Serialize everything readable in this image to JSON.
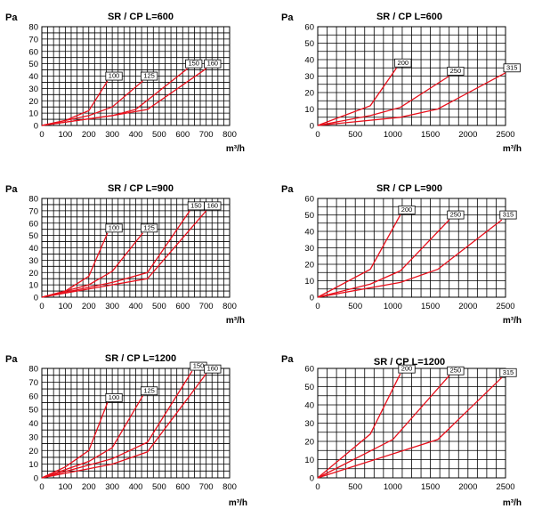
{
  "chart_data": [
    {
      "type": "line",
      "title": "SR / CP  L=600",
      "ylabel": "Pa",
      "xlabel": "m³/h",
      "xlim": [
        0,
        800
      ],
      "ylim": [
        0,
        80
      ],
      "grid": true,
      "x_ticks": [
        0,
        100,
        200,
        300,
        400,
        500,
        600,
        700,
        800
      ],
      "y_ticks": [
        0,
        10,
        20,
        30,
        40,
        50,
        60,
        70,
        80
      ],
      "series": [
        {
          "name": "100",
          "x": [
            0,
            100,
            200,
            280
          ],
          "y": [
            0,
            4,
            12,
            36
          ]
        },
        {
          "name": "125",
          "x": [
            0,
            200,
            300,
            430
          ],
          "y": [
            0,
            8,
            15,
            36
          ]
        },
        {
          "name": "150",
          "x": [
            0,
            300,
            400,
            620
          ],
          "y": [
            0,
            8,
            13,
            46
          ]
        },
        {
          "name": "160",
          "x": [
            0,
            300,
            450,
            700
          ],
          "y": [
            0,
            8,
            13,
            46
          ]
        }
      ]
    },
    {
      "type": "line",
      "title": "SR / CP  L=600",
      "ylabel": "Pa",
      "xlabel": "m³/h",
      "xlim": [
        0,
        2500
      ],
      "ylim": [
        0,
        60
      ],
      "grid": true,
      "x_ticks": [
        0,
        500,
        1000,
        1500,
        2000,
        2500
      ],
      "y_ticks": [
        0,
        10,
        20,
        30,
        40,
        50,
        60
      ],
      "series": [
        {
          "name": "200",
          "x": [
            0,
            700,
            1050
          ],
          "y": [
            0,
            12,
            35
          ]
        },
        {
          "name": "250",
          "x": [
            0,
            700,
            1100,
            1750
          ],
          "y": [
            0,
            6,
            11,
            30
          ]
        },
        {
          "name": "315",
          "x": [
            0,
            1100,
            1600,
            2500
          ],
          "y": [
            0,
            5,
            10,
            32
          ]
        }
      ]
    },
    {
      "type": "line",
      "title": "SR / CP  L=900",
      "ylabel": "Pa",
      "xlabel": "m³/h",
      "xlim": [
        0,
        800
      ],
      "ylim": [
        0,
        80
      ],
      "grid": true,
      "x_ticks": [
        0,
        100,
        200,
        300,
        400,
        500,
        600,
        700,
        800
      ],
      "y_ticks": [
        0,
        10,
        20,
        30,
        40,
        50,
        60,
        70,
        80
      ],
      "series": [
        {
          "name": "100",
          "x": [
            0,
            100,
            200,
            280
          ],
          "y": [
            0,
            5,
            17,
            52
          ]
        },
        {
          "name": "125",
          "x": [
            0,
            200,
            300,
            430
          ],
          "y": [
            0,
            10,
            21,
            52
          ]
        },
        {
          "name": "150",
          "x": [
            0,
            300,
            450,
            630
          ],
          "y": [
            0,
            12,
            20,
            70
          ]
        },
        {
          "name": "160",
          "x": [
            0,
            300,
            450,
            700
          ],
          "y": [
            0,
            10,
            15,
            70
          ]
        }
      ]
    },
    {
      "type": "line",
      "title": "SR / CP  L=900",
      "ylabel": "Pa",
      "xlabel": "m³/h",
      "xlim": [
        0,
        2500
      ],
      "ylim": [
        0,
        60
      ],
      "grid": true,
      "x_ticks": [
        0,
        500,
        1000,
        1500,
        2000,
        2500
      ],
      "y_ticks": [
        0,
        10,
        20,
        30,
        40,
        50,
        60
      ],
      "series": [
        {
          "name": "200",
          "x": [
            0,
            700,
            1100
          ],
          "y": [
            0,
            17,
            50
          ]
        },
        {
          "name": "250",
          "x": [
            0,
            700,
            1100,
            1750
          ],
          "y": [
            0,
            8,
            16,
            47
          ]
        },
        {
          "name": "315",
          "x": [
            0,
            1100,
            1600,
            2450
          ],
          "y": [
            0,
            9,
            17,
            47
          ]
        }
      ]
    },
    {
      "type": "line",
      "title": "SR / CP  L=1200",
      "ylabel": "Pa",
      "xlabel": "m³/h",
      "xlim": [
        0,
        800
      ],
      "ylim": [
        0,
        80
      ],
      "grid": true,
      "x_ticks": [
        0,
        100,
        200,
        300,
        400,
        500,
        600,
        700,
        800
      ],
      "y_ticks": [
        0,
        10,
        20,
        30,
        40,
        50,
        60,
        70,
        80
      ],
      "series": [
        {
          "name": "100",
          "x": [
            0,
            100,
            200,
            280
          ],
          "y": [
            0,
            8,
            20,
            55
          ]
        },
        {
          "name": "125",
          "x": [
            0,
            200,
            300,
            430
          ],
          "y": [
            0,
            12,
            22,
            60
          ]
        },
        {
          "name": "150",
          "x": [
            0,
            300,
            450,
            640
          ],
          "y": [
            0,
            14,
            26,
            78
          ]
        },
        {
          "name": "160",
          "x": [
            0,
            300,
            450,
            700
          ],
          "y": [
            0,
            10,
            19,
            76
          ]
        }
      ]
    },
    {
      "type": "line",
      "title": "SR / CP  L=1200",
      "ylabel": "Pa",
      "xlabel": "m³/h",
      "xlim": [
        0,
        2500
      ],
      "ylim": [
        0,
        60
      ],
      "grid": true,
      "x_ticks": [
        0,
        500,
        1000,
        1500,
        2000,
        2500
      ],
      "y_ticks": [
        0,
        10,
        20,
        30,
        40,
        50,
        60
      ],
      "series": [
        {
          "name": "200",
          "x": [
            0,
            700,
            1100
          ],
          "y": [
            0,
            24,
            57
          ]
        },
        {
          "name": "250",
          "x": [
            0,
            1000,
            1750
          ],
          "y": [
            0,
            21,
            56
          ]
        },
        {
          "name": "315",
          "x": [
            0,
            1600,
            2450
          ],
          "y": [
            0,
            21,
            55
          ]
        }
      ]
    }
  ]
}
